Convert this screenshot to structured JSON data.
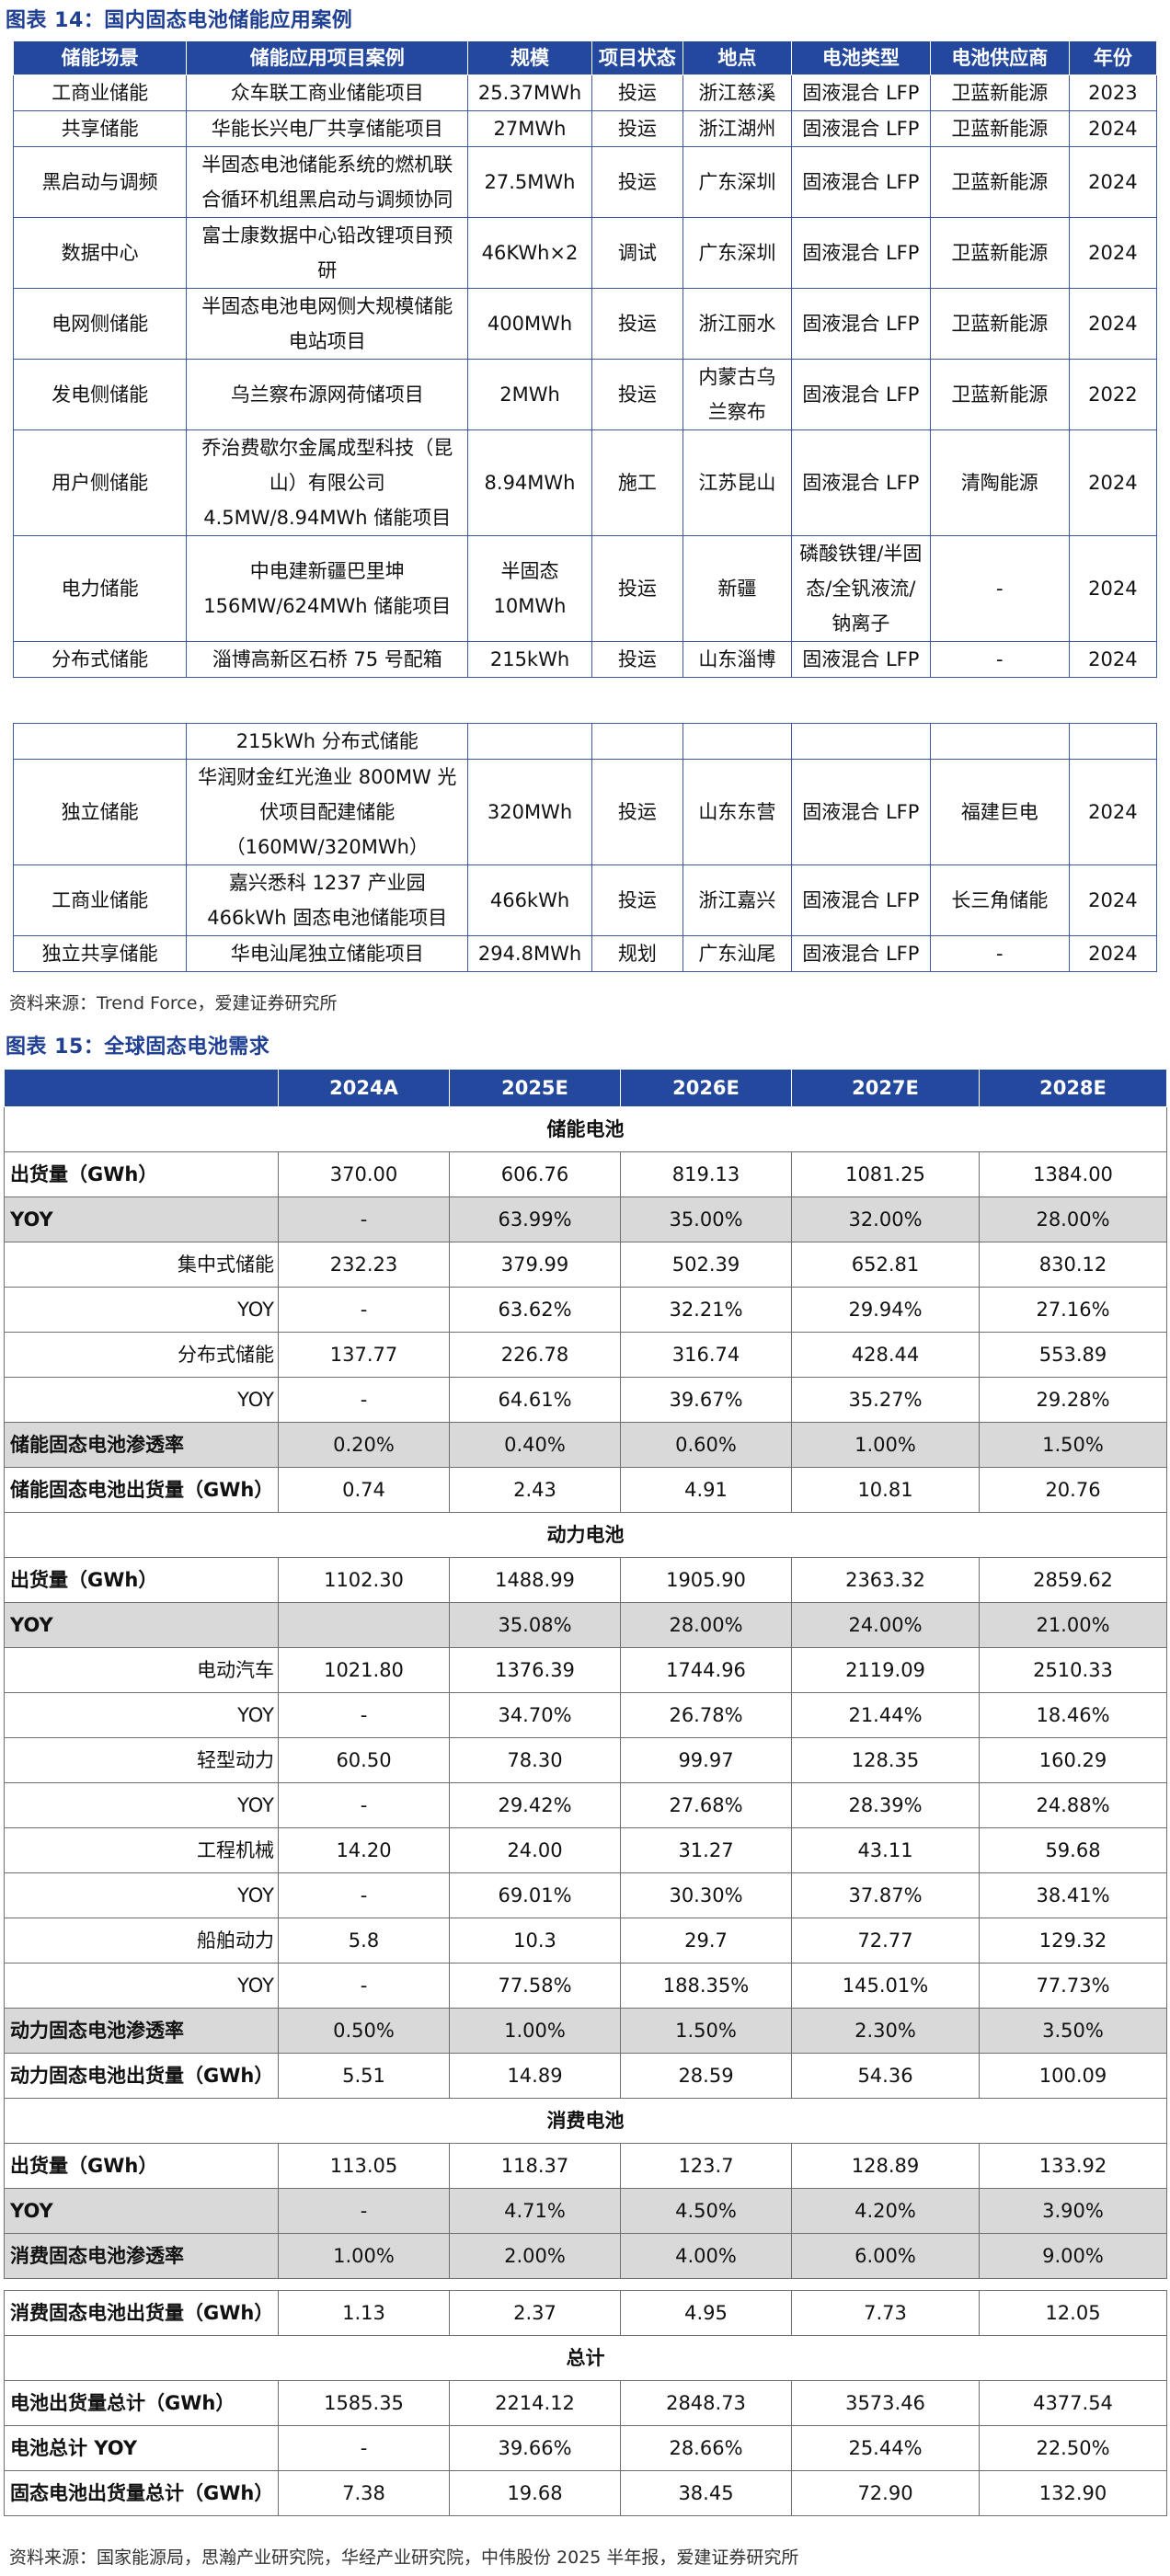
{
  "fig14": {
    "title": "图表 14：国内固态电池储能应用案例",
    "headers": [
      "储能场景",
      "储能应用项目案例",
      "规模",
      "项目状态",
      "地点",
      "电池类型",
      "电池供应商",
      "年份"
    ],
    "rows_part1": [
      [
        "工商业储能",
        "众车联工商业储能项目",
        "25.37MWh",
        "投运",
        "浙江慈溪",
        "固液混合 LFP",
        "卫蓝新能源",
        "2023"
      ],
      [
        "共享储能",
        "华能长兴电厂共享储能项目",
        "27MWh",
        "投运",
        "浙江湖州",
        "固液混合 LFP",
        "卫蓝新能源",
        "2024"
      ],
      [
        "黑启动与调频",
        "半固态电池储能系统的燃机联合循环机组黑启动与调频协同",
        "27.5MWh",
        "投运",
        "广东深圳",
        "固液混合 LFP",
        "卫蓝新能源",
        "2024"
      ],
      [
        "数据中心",
        "富士康数据中心铅改锂项目预研",
        "46KWh×2",
        "调试",
        "广东深圳",
        "固液混合 LFP",
        "卫蓝新能源",
        "2024"
      ],
      [
        "电网侧储能",
        "半固态电池电网侧大规模储能电站项目",
        "400MWh",
        "投运",
        "浙江丽水",
        "固液混合 LFP",
        "卫蓝新能源",
        "2024"
      ],
      [
        "发电侧储能",
        "乌兰察布源网荷储项目",
        "2MWh",
        "投运",
        "内蒙古乌兰察布",
        "固液混合 LFP",
        "卫蓝新能源",
        "2022"
      ],
      [
        "用户侧储能",
        "乔治费歇尔金属成型科技（昆山）有限公司 4.5MW/8.94MWh 储能项目",
        "8.94MWh",
        "施工",
        "江苏昆山",
        "固液混合 LFP",
        "清陶能源",
        "2024"
      ],
      [
        "电力储能",
        "中电建新疆巴里坤 156MW/624MWh 储能项目",
        "半固态 10MWh",
        "投运",
        "新疆",
        "磷酸铁锂/半固态/全钒液流/钠离子",
        "-",
        "2024"
      ],
      [
        "分布式储能",
        "淄博高新区石桥 75 号配箱",
        "215kWh",
        "投运",
        "山东淄博",
        "固液混合 LFP",
        "-",
        "2024"
      ]
    ],
    "continued_cell": "215kWh 分布式储能",
    "rows_part2": [
      [
        "独立储能",
        "华润财金红光渔业 800MW 光伏项目配建储能（160MW/320MWh）",
        "320MWh",
        "投运",
        "山东东营",
        "固液混合 LFP",
        "福建巨电",
        "2024"
      ],
      [
        "工商业储能",
        "嘉兴悉科 1237 产业园 466kWh 固态电池储能项目",
        "466kWh",
        "投运",
        "浙江嘉兴",
        "固液混合 LFP",
        "长三角储能",
        "2024"
      ],
      [
        "独立共享储能",
        "华电汕尾独立储能项目",
        "294.8MWh",
        "规划",
        "广东汕尾",
        "固液混合 LFP",
        "-",
        "2024"
      ]
    ],
    "source": "资料来源：Trend Force，爱建证券研究所"
  },
  "fig15": {
    "title": "图表 15：全球固态电池需求",
    "years": [
      "",
      "2024A",
      "2025E",
      "2026E",
      "2027E",
      "2028E"
    ],
    "sections": [
      {
        "name": "储能电池",
        "rows": [
          {
            "label": "出货量（GWh）",
            "style": "bold",
            "values": [
              "370.00",
              "606.76",
              "819.13",
              "1081.25",
              "1384.00"
            ]
          },
          {
            "label": "YOY",
            "style": "bold shade",
            "values": [
              "-",
              "63.99%",
              "35.00%",
              "32.00%",
              "28.00%"
            ]
          },
          {
            "label": "集中式储能",
            "style": "sub",
            "values": [
              "232.23",
              "379.99",
              "502.39",
              "652.81",
              "830.12"
            ]
          },
          {
            "label": "YOY",
            "style": "sub",
            "values": [
              "-",
              "63.62%",
              "32.21%",
              "29.94%",
              "27.16%"
            ]
          },
          {
            "label": "分布式储能",
            "style": "sub",
            "values": [
              "137.77",
              "226.78",
              "316.74",
              "428.44",
              "553.89"
            ]
          },
          {
            "label": "YOY",
            "style": "sub",
            "values": [
              "-",
              "64.61%",
              "39.67%",
              "35.27%",
              "29.28%"
            ]
          },
          {
            "label": "储能固态电池渗透率",
            "style": "bold shade",
            "values": [
              "0.20%",
              "0.40%",
              "0.60%",
              "1.00%",
              "1.50%"
            ]
          },
          {
            "label": "储能固态电池出货量（GWh）",
            "style": "bold",
            "values": [
              "0.74",
              "2.43",
              "4.91",
              "10.81",
              "20.76"
            ]
          }
        ]
      },
      {
        "name": "动力电池",
        "rows": [
          {
            "label": "出货量（GWh）",
            "style": "bold",
            "values": [
              "1102.30",
              "1488.99",
              "1905.90",
              "2363.32",
              "2859.62"
            ]
          },
          {
            "label": "YOY",
            "style": "bold shade",
            "values": [
              "",
              "35.08%",
              "28.00%",
              "24.00%",
              "21.00%"
            ]
          },
          {
            "label": "电动汽车",
            "style": "sub",
            "values": [
              "1021.80",
              "1376.39",
              "1744.96",
              "2119.09",
              "2510.33"
            ]
          },
          {
            "label": "YOY",
            "style": "sub",
            "values": [
              "-",
              "34.70%",
              "26.78%",
              "21.44%",
              "18.46%"
            ]
          },
          {
            "label": "轻型动力",
            "style": "sub",
            "values": [
              "60.50",
              "78.30",
              "99.97",
              "128.35",
              "160.29"
            ]
          },
          {
            "label": "YOY",
            "style": "sub",
            "values": [
              "-",
              "29.42%",
              "27.68%",
              "28.39%",
              "24.88%"
            ]
          },
          {
            "label": "工程机械",
            "style": "sub",
            "values": [
              "14.20",
              "24.00",
              "31.27",
              "43.11",
              "59.68"
            ]
          },
          {
            "label": "YOY",
            "style": "sub",
            "values": [
              "-",
              "69.01%",
              "30.30%",
              "37.87%",
              "38.41%"
            ]
          },
          {
            "label": "船舶动力",
            "style": "sub",
            "values": [
              "5.8",
              "10.3",
              "29.7",
              "72.77",
              "129.32"
            ]
          },
          {
            "label": "YOY",
            "style": "sub",
            "values": [
              "-",
              "77.58%",
              "188.35%",
              "145.01%",
              "77.73%"
            ]
          },
          {
            "label": "动力固态电池渗透率",
            "style": "bold shade",
            "values": [
              "0.50%",
              "1.00%",
              "1.50%",
              "2.30%",
              "3.50%"
            ]
          },
          {
            "label": "动力固态电池出货量（GWh）",
            "style": "bold",
            "values": [
              "5.51",
              "14.89",
              "28.59",
              "54.36",
              "100.09"
            ]
          }
        ]
      },
      {
        "name": "消费电池",
        "rows": [
          {
            "label": "出货量（GWh）",
            "style": "bold",
            "values": [
              "113.05",
              "118.37",
              "123.7",
              "128.89",
              "133.92"
            ]
          },
          {
            "label": "YOY",
            "style": "bold shade",
            "values": [
              "-",
              "4.71%",
              "4.50%",
              "4.20%",
              "3.90%"
            ]
          },
          {
            "label": "消费固态电池渗透率",
            "style": "bold shade",
            "values": [
              "1.00%",
              "2.00%",
              "4.00%",
              "6.00%",
              "9.00%"
            ]
          },
          {
            "label": "",
            "style": "gap",
            "values": [
              "",
              "",
              "",
              "",
              ""
            ]
          },
          {
            "label": "消费固态电池出货量（GWh）",
            "style": "bold",
            "values": [
              "1.13",
              "2.37",
              "4.95",
              "7.73",
              "12.05"
            ]
          }
        ]
      },
      {
        "name": "总计",
        "rows": [
          {
            "label": "电池出货量总计（GWh）",
            "style": "bold",
            "values": [
              "1585.35",
              "2214.12",
              "2848.73",
              "3573.46",
              "4377.54"
            ]
          },
          {
            "label": "电池总计 YOY",
            "style": "bold",
            "values": [
              "-",
              "39.66%",
              "28.66%",
              "25.44%",
              "22.50%"
            ]
          },
          {
            "label": "固态电池出货量总计（GWh）",
            "style": "bold",
            "values": [
              "7.38",
              "19.68",
              "38.45",
              "72.90",
              "132.90"
            ]
          }
        ]
      }
    ],
    "source": "资料来源：国家能源局，思瀚产业研究院，华经产业研究院，中伟股份 2025 半年报，爱建证券研究所"
  },
  "colors": {
    "header_bg": "#24489e",
    "title_blue": "#1f3f93",
    "shade": "#d9d9d9"
  }
}
